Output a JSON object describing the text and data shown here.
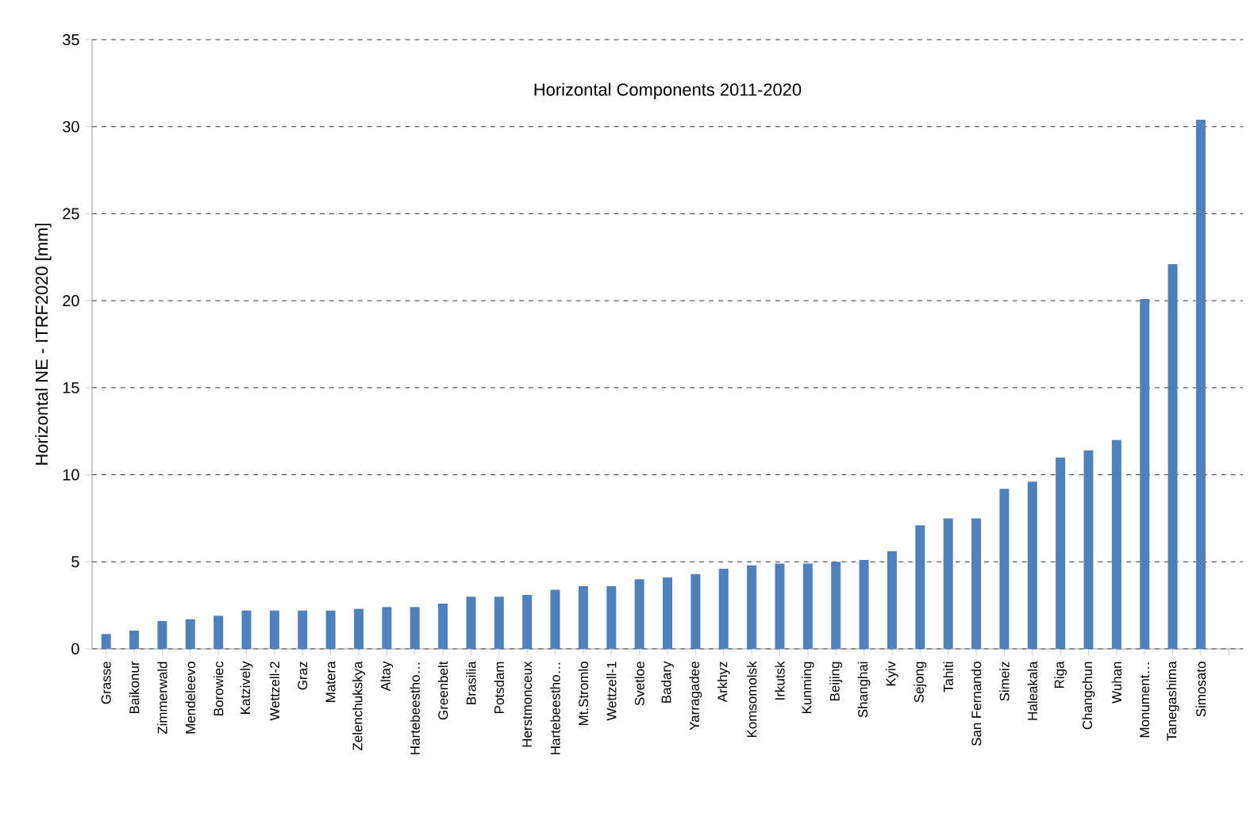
{
  "chart_data": {
    "type": "bar",
    "title": "Horizontal Components 2011-2020",
    "ylabel": "Horizontal NE - ITRF2020 [mm]",
    "categories": [
      "Grasse",
      "Baikonur",
      "Zimmerwald",
      "Mendeleevo",
      "Borowiec",
      "Katzively",
      "Wettzell-2",
      "Graz",
      "Matera",
      "Zelenchukskya",
      "Altay",
      "Hartebeestho…",
      "Greenbelt",
      "Brasilia",
      "Potsdam",
      "Herstmonceux",
      "Hartebeestho…",
      "Mt.Stromlo",
      "Wettzell-1",
      "Svetloe",
      "Badary",
      "Yarragadee",
      "Arkhyz",
      "Komsomolsk",
      "Irkutsk",
      "Kunming",
      "Beijing",
      "Shanghai",
      "Kyiv",
      "Sejong",
      "Tahiti",
      "San Fernando",
      "Simeiz",
      "Haleakala",
      "Riga",
      "Changchun",
      "Wuhan",
      "Monument…",
      "Tanegashima",
      "Simosato",
      null
    ],
    "values": [
      0.85,
      1.05,
      1.6,
      1.7,
      1.9,
      2.2,
      2.2,
      2.2,
      2.2,
      2.3,
      2.4,
      2.4,
      2.6,
      3.0,
      3.0,
      3.1,
      3.4,
      3.6,
      3.6,
      4.0,
      4.1,
      4.3,
      4.6,
      4.8,
      4.9,
      4.9,
      5.0,
      5.1,
      5.6,
      7.1,
      7.5,
      7.5,
      9.2,
      9.6,
      11.0,
      11.4,
      12.0,
      20.1,
      22.1,
      30.4,
      null
    ],
    "color": "#4f81bd",
    "ylim": [
      0,
      35
    ],
    "yticks": [
      0,
      5,
      10,
      15,
      20,
      25,
      30,
      35
    ],
    "grid": "y"
  }
}
